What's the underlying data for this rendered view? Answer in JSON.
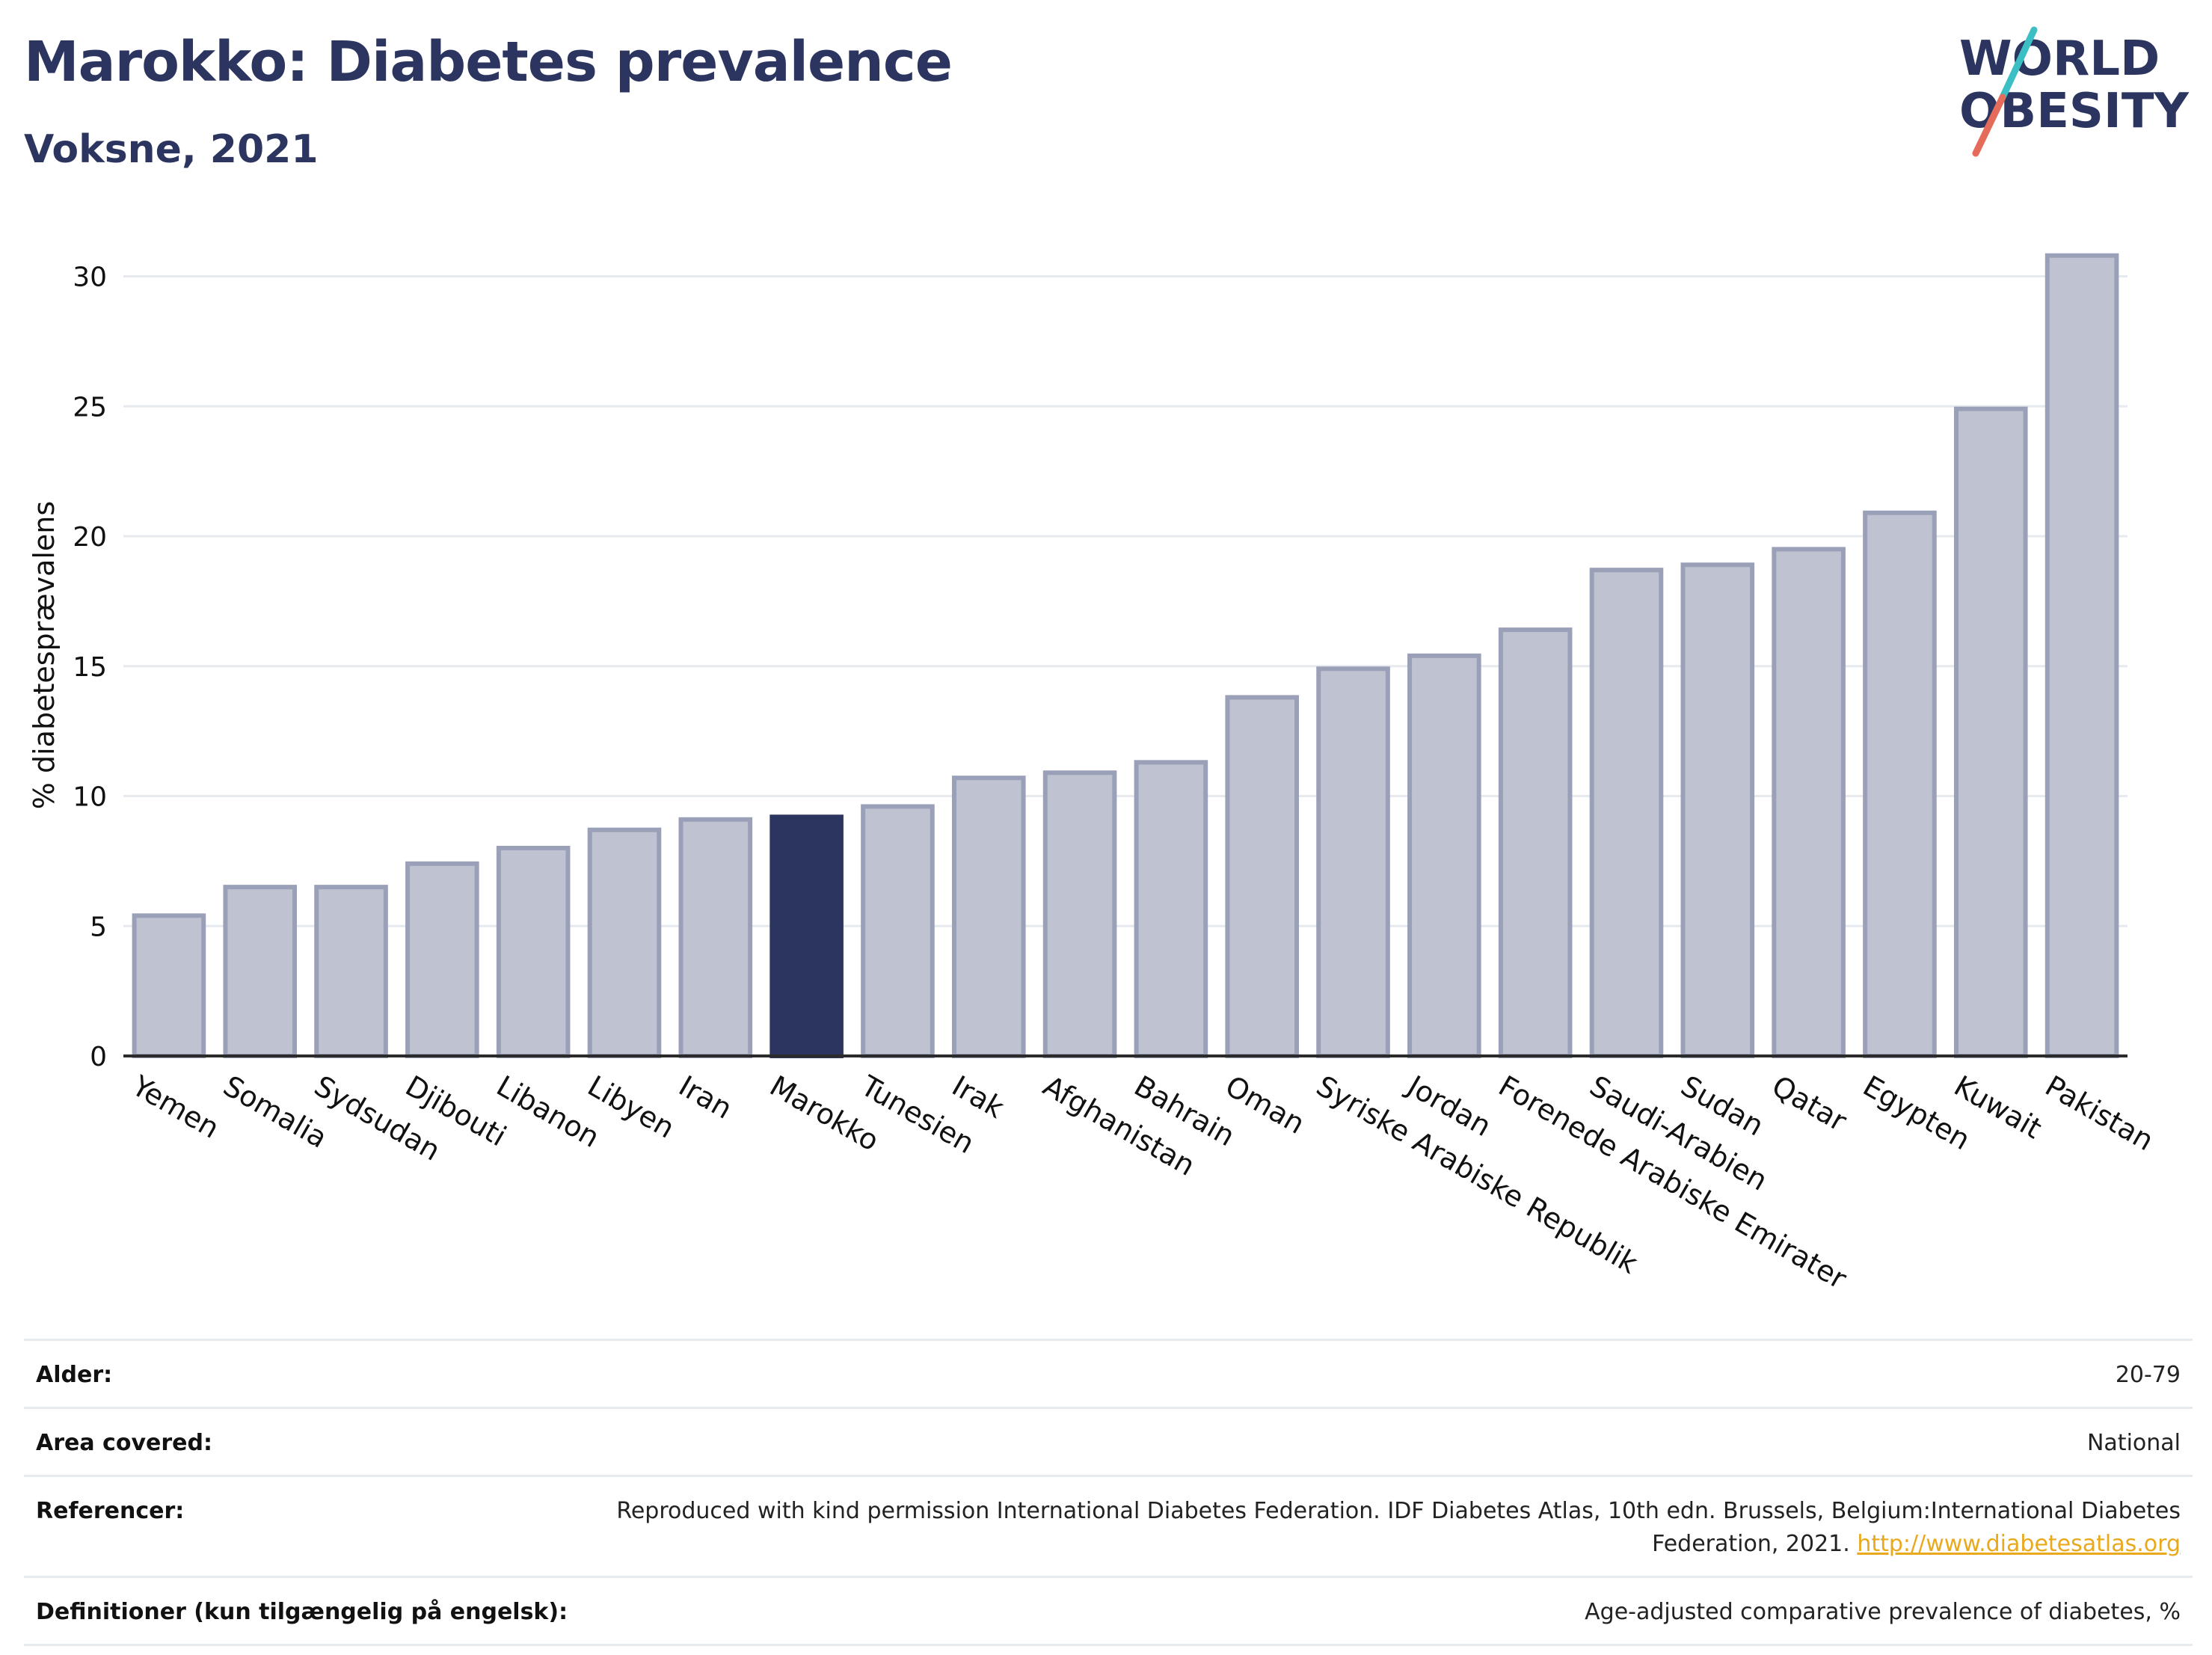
{
  "header": {
    "title": "Marokko: Diabetes prevalence",
    "subtitle": "Voksne, 2021"
  },
  "logo": {
    "line1": "WORLD",
    "line2": "OBESITY",
    "slash_color_top": "#3bbfc4",
    "slash_color_bottom": "#e56b5a",
    "text_color": "#2b355f"
  },
  "chart_data": {
    "type": "bar",
    "ylabel": "% diabetesprævalens",
    "xlabel": "",
    "ylim": [
      0,
      32
    ],
    "yticks": [
      0,
      5,
      10,
      15,
      20,
      25,
      30
    ],
    "grid": true,
    "highlight": "Marokko",
    "colors": {
      "bar": "#bfc3d1",
      "bar_border": "#9aa0b8",
      "highlight": "#2b355f"
    },
    "categories": [
      "Yemen",
      "Somalia",
      "Sydsudan",
      "Djibouti",
      "Libanon",
      "Libyen",
      "Iran",
      "Marokko",
      "Tunesien",
      "Irak",
      "Afghanistan",
      "Bahrain",
      "Oman",
      "Syriske Arabiske Republik",
      "Jordan",
      "Forenede Arabiske Emirater",
      "Saudi-Arabien",
      "Sudan",
      "Qatar",
      "Egypten",
      "Kuwait",
      "Pakistan"
    ],
    "values": [
      5.4,
      6.5,
      6.5,
      7.4,
      8.0,
      8.7,
      9.1,
      9.2,
      9.6,
      10.7,
      10.9,
      11.3,
      13.8,
      14.9,
      15.4,
      16.4,
      18.7,
      18.9,
      19.5,
      20.9,
      24.9,
      30.8
    ]
  },
  "meta": {
    "rows": [
      {
        "key": "Alder:",
        "value": "20-79"
      },
      {
        "key": "Area covered:",
        "value": "National"
      },
      {
        "key": "Referencer:",
        "value": "Reproduced with kind permission International Diabetes Federation.  IDF Diabetes Atlas, 10th edn. Brussels, Belgium:International Diabetes Federation, 2021.",
        "link": "http://www.diabetesatlas.org"
      },
      {
        "key": "Definitioner (kun tilgængelig på engelsk):",
        "value": "Age-adjusted comparative prevalence of diabetes, %"
      }
    ]
  }
}
